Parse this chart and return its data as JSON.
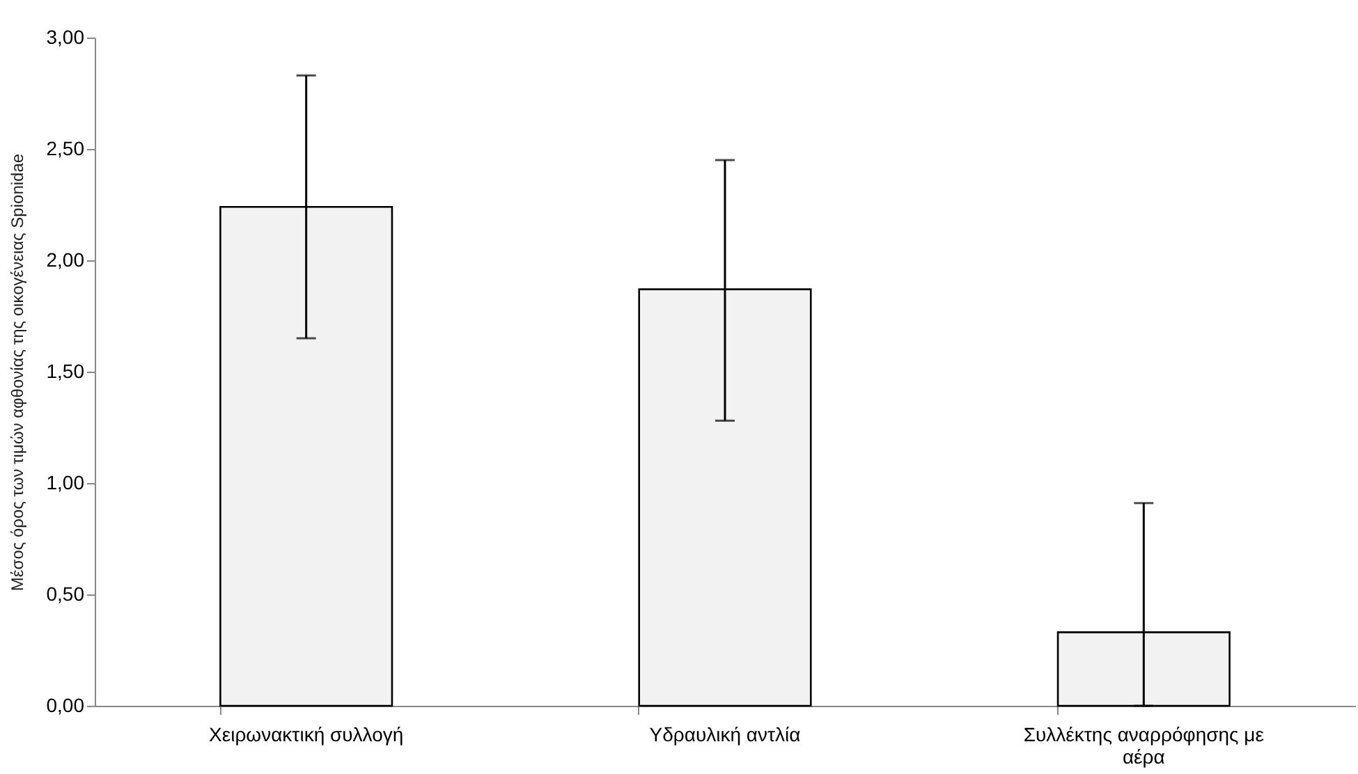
{
  "chart_data": {
    "type": "bar",
    "ylabel": "Μέσος όρος των τιμών αφθονίας της οικογένειας Spionidae",
    "categories": [
      "Χειρωνακτική συλλογή",
      "Υδραυλική αντλία",
      "Συλλέκτης αναρρόφησης με αέρα"
    ],
    "values": [
      2.24,
      1.87,
      0.33
    ],
    "errors": [
      [
        1.65,
        2.83
      ],
      [
        1.28,
        2.45
      ],
      [
        0,
        0.91
      ]
    ],
    "color": "#f2f2f2",
    "ylim": [
      0,
      3
    ],
    "yticks": [
      {
        "value": 0,
        "label": "0,00"
      },
      {
        "value": 0.5,
        "label": "0,50"
      },
      {
        "value": 1,
        "label": "1,00"
      },
      {
        "value": 1.5,
        "label": "1,50"
      },
      {
        "value": 2,
        "label": "2,00"
      },
      {
        "value": 2.5,
        "label": "2,50"
      },
      {
        "value": 3,
        "label": "3,00"
      }
    ],
    "grid": false
  }
}
